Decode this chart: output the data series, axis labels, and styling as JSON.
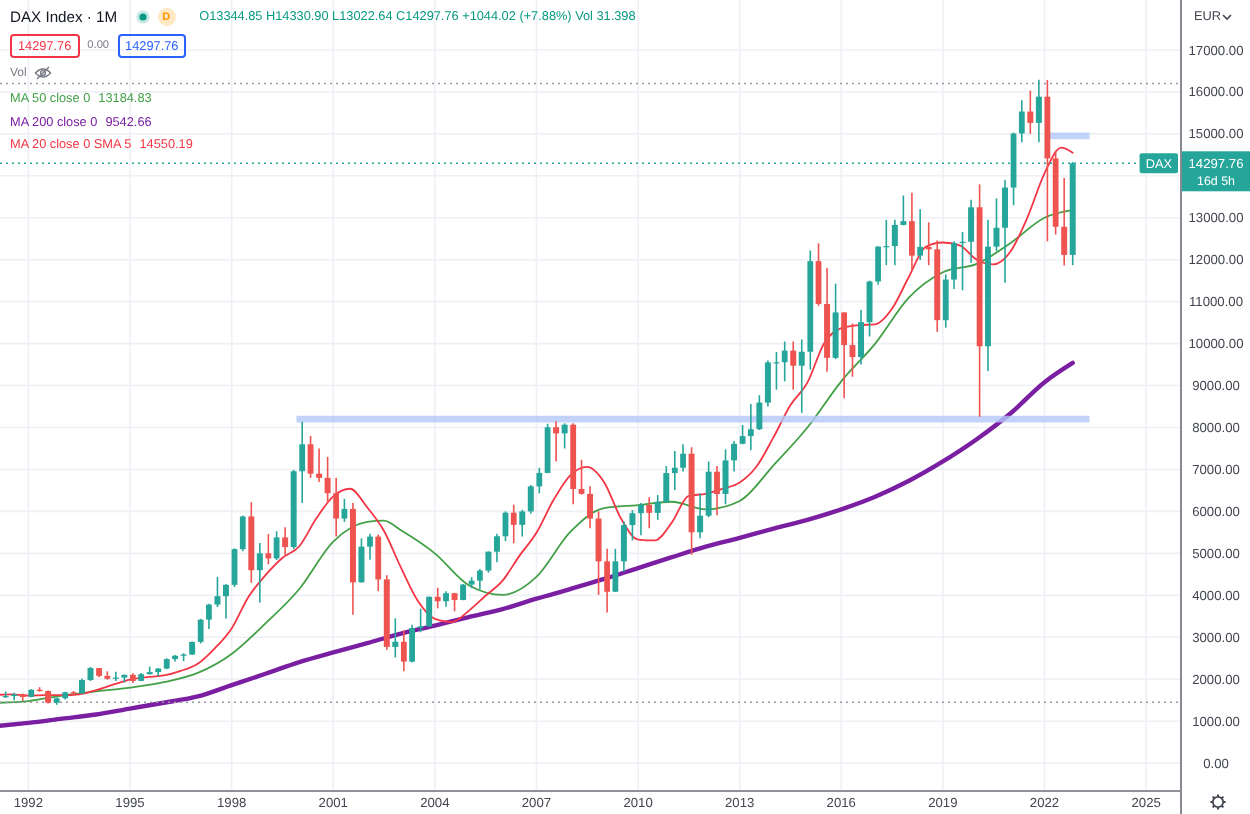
{
  "chart_data": {
    "type": "candlestick",
    "title": "DAX Index · 1M",
    "subtitle": "O13344.85 H14330.90 L13022.64 C14297.76 +1044.02 (+7.88%) Vol 31.398",
    "ylabel": "EUR",
    "annotations": [
      "D",
      "14297.76",
      "0.00",
      "14297.76",
      "Vol",
      "16d 5h",
      "13184.83",
      "9542.66",
      "14550.19"
    ],
    "x": [
      "1991-05",
      "1991-08",
      "1991-11",
      "1992-02",
      "1992-05",
      "1992-08",
      "1992-11",
      "1993-02",
      "1993-05",
      "1993-08",
      "1993-11",
      "1994-02",
      "1994-05",
      "1994-08",
      "1994-11",
      "1995-02",
      "1995-05",
      "1995-08",
      "1995-11",
      "1996-02",
      "1996-05",
      "1996-08",
      "1996-11",
      "1997-02",
      "1997-05",
      "1997-08",
      "1997-11",
      "1998-02",
      "1998-05",
      "1998-08",
      "1998-11",
      "1999-02",
      "1999-05",
      "1999-08",
      "1999-11",
      "2000-02",
      "2000-05",
      "2000-08",
      "2000-11",
      "2001-02",
      "2001-05",
      "2001-08",
      "2001-11",
      "2002-02",
      "2002-05",
      "2002-08",
      "2002-11",
      "2003-02",
      "2003-05",
      "2003-08",
      "2003-11",
      "2004-02",
      "2004-05",
      "2004-08",
      "2004-11",
      "2005-02",
      "2005-05",
      "2005-08",
      "2005-11",
      "2006-02",
      "2006-05",
      "2006-08",
      "2006-11",
      "2007-02",
      "2007-05",
      "2007-08",
      "2007-11",
      "2008-02",
      "2008-05",
      "2008-08",
      "2008-11",
      "2009-02",
      "2009-05",
      "2009-08",
      "2009-11",
      "2010-02",
      "2010-05",
      "2010-08",
      "2010-11",
      "2011-02",
      "2011-05",
      "2011-08",
      "2011-11",
      "2012-02",
      "2012-05",
      "2012-08",
      "2012-11",
      "2013-02",
      "2013-05",
      "2013-08",
      "2013-11",
      "2014-02",
      "2014-05",
      "2014-08",
      "2014-11",
      "2015-02",
      "2015-05",
      "2015-08",
      "2015-11",
      "2016-02",
      "2016-05",
      "2016-08",
      "2016-11",
      "2017-02",
      "2017-05",
      "2017-08",
      "2017-11",
      "2018-02",
      "2018-05",
      "2018-08",
      "2018-11",
      "2019-02",
      "2019-05",
      "2019-08",
      "2019-11",
      "2020-02",
      "2020-05",
      "2020-08",
      "2020-11",
      "2021-02",
      "2021-05",
      "2021-08",
      "2021-11",
      "2022-02",
      "2022-05",
      "2022-08",
      "2022-11"
    ],
    "ohlc": [
      [
        1580,
        1710,
        1550,
        1600
      ],
      [
        1600,
        1680,
        1500,
        1640
      ],
      [
        1640,
        1660,
        1480,
        1578
      ],
      [
        1578,
        1760,
        1570,
        1750
      ],
      [
        1750,
        1810,
        1700,
        1720
      ],
      [
        1720,
        1730,
        1420,
        1440
      ],
      [
        1440,
        1560,
        1390,
        1545
      ],
      [
        1545,
        1700,
        1520,
        1690
      ],
      [
        1690,
        1720,
        1620,
        1660
      ],
      [
        1660,
        2020,
        1650,
        1980
      ],
      [
        1980,
        2290,
        1960,
        2267
      ],
      [
        2267,
        2270,
        2050,
        2080
      ],
      [
        2080,
        2190,
        1990,
        2010
      ],
      [
        2010,
        2180,
        1960,
        2040
      ],
      [
        2040,
        2110,
        1920,
        2107
      ],
      [
        2107,
        2140,
        1910,
        1960
      ],
      [
        1960,
        2150,
        1950,
        2120
      ],
      [
        2120,
        2300,
        2110,
        2170
      ],
      [
        2170,
        2270,
        2080,
        2254
      ],
      [
        2254,
        2500,
        2240,
        2480
      ],
      [
        2480,
        2580,
        2420,
        2560
      ],
      [
        2560,
        2620,
        2430,
        2590
      ],
      [
        2590,
        2900,
        2580,
        2889
      ],
      [
        2889,
        3440,
        2850,
        3420
      ],
      [
        3420,
        3800,
        3200,
        3780
      ],
      [
        3780,
        4440,
        3720,
        3980
      ],
      [
        3980,
        4270,
        3450,
        4250
      ],
      [
        4250,
        5120,
        4200,
        5100
      ],
      [
        5100,
        5900,
        5050,
        5880
      ],
      [
        5880,
        6220,
        4300,
        4600
      ],
      [
        4600,
        5250,
        3830,
        5002
      ],
      [
        5002,
        5460,
        4740,
        4880
      ],
      [
        4880,
        5530,
        4840,
        5380
      ],
      [
        5380,
        5620,
        4950,
        5150
      ],
      [
        5150,
        6990,
        5100,
        6958
      ],
      [
        6958,
        8136,
        6200,
        7600
      ],
      [
        7600,
        7800,
        6800,
        6900
      ],
      [
        6900,
        7500,
        6700,
        6800
      ],
      [
        6800,
        7300,
        6200,
        6434
      ],
      [
        6434,
        6800,
        5400,
        5830
      ],
      [
        5830,
        6300,
        5750,
        6060
      ],
      [
        6060,
        6200,
        3540,
        4310
      ],
      [
        4310,
        5360,
        4300,
        5160
      ],
      [
        5160,
        5470,
        4850,
        5400
      ],
      [
        5400,
        5450,
        4100,
        4380
      ],
      [
        4380,
        4480,
        2700,
        2770
      ],
      [
        2770,
        3450,
        2520,
        2893
      ],
      [
        2893,
        3160,
        2188,
        2420
      ],
      [
        2420,
        3300,
        2400,
        3220
      ],
      [
        3220,
        3680,
        3120,
        3260
      ],
      [
        3260,
        3970,
        3250,
        3965
      ],
      [
        3965,
        4180,
        3690,
        3860
      ],
      [
        3860,
        4100,
        3730,
        4050
      ],
      [
        4050,
        4060,
        3620,
        3890
      ],
      [
        3890,
        4270,
        3880,
        4256
      ],
      [
        4256,
        4430,
        4170,
        4350
      ],
      [
        4350,
        4630,
        4140,
        4590
      ],
      [
        4590,
        5050,
        4540,
        5040
      ],
      [
        5040,
        5470,
        4790,
        5408
      ],
      [
        5408,
        6000,
        5290,
        5970
      ],
      [
        5970,
        6160,
        5240,
        5680
      ],
      [
        5680,
        6040,
        5400,
        6000
      ],
      [
        6000,
        6630,
        5950,
        6597
      ],
      [
        6597,
        7040,
        6430,
        6917
      ],
      [
        6917,
        8090,
        6910,
        8007
      ],
      [
        8007,
        8152,
        7190,
        7860
      ],
      [
        7860,
        8100,
        7500,
        8067
      ],
      [
        8067,
        8100,
        6170,
        6535
      ],
      [
        6535,
        7230,
        6400,
        6418
      ],
      [
        6418,
        6600,
        5600,
        5830
      ],
      [
        5830,
        6000,
        4010,
        4810
      ],
      [
        4810,
        5110,
        3589,
        4085
      ],
      [
        4085,
        5110,
        4080,
        4810
      ],
      [
        4810,
        5760,
        4560,
        5675
      ],
      [
        5675,
        6030,
        5310,
        5957
      ],
      [
        5957,
        6200,
        5430,
        6154
      ],
      [
        6154,
        6340,
        5600,
        5966
      ],
      [
        5966,
        6390,
        5800,
        6229
      ],
      [
        6229,
        7080,
        6200,
        6914
      ],
      [
        6914,
        7440,
        6510,
        7041
      ],
      [
        7041,
        7600,
        6950,
        7376
      ],
      [
        7376,
        7530,
        4966,
        5502
      ],
      [
        5502,
        6430,
        5360,
        5898
      ],
      [
        5898,
        7190,
        5860,
        6947
      ],
      [
        6947,
        7080,
        5910,
        6416
      ],
      [
        6416,
        7480,
        6170,
        7216
      ],
      [
        7216,
        7680,
        6950,
        7612
      ],
      [
        7612,
        8060,
        7600,
        7795
      ],
      [
        7795,
        8560,
        7460,
        7959
      ],
      [
        7959,
        8770,
        7940,
        8594
      ],
      [
        8594,
        9600,
        8500,
        9552
      ],
      [
        9552,
        9800,
        8900,
        9556
      ],
      [
        9556,
        10050,
        9100,
        9833
      ],
      [
        9833,
        10050,
        8900,
        9474
      ],
      [
        9474,
        10100,
        8350,
        9806
      ],
      [
        9806,
        12220,
        9380,
        11966
      ],
      [
        11966,
        12391,
        10900,
        10945
      ],
      [
        10945,
        11800,
        9330,
        9660
      ],
      [
        9660,
        11430,
        9630,
        10743
      ],
      [
        10743,
        10750,
        8699,
        9965
      ],
      [
        9965,
        10480,
        9210,
        9680
      ],
      [
        9680,
        10800,
        9500,
        10511
      ],
      [
        10511,
        11500,
        10170,
        11481
      ],
      [
        11481,
        12320,
        11400,
        12313
      ],
      [
        12313,
        12950,
        11870,
        12325
      ],
      [
        12325,
        12950,
        11870,
        12829
      ],
      [
        12829,
        13530,
        12820,
        12918
      ],
      [
        12918,
        13597,
        11730,
        12097
      ],
      [
        12097,
        13200,
        11990,
        12306
      ],
      [
        12306,
        12890,
        11870,
        12247
      ],
      [
        12247,
        12460,
        10280,
        10559
      ],
      [
        10559,
        11650,
        10380,
        11526
      ],
      [
        11526,
        12440,
        11300,
        12399
      ],
      [
        12399,
        12660,
        11270,
        12428
      ],
      [
        12428,
        13430,
        11930,
        13249
      ],
      [
        13249,
        13795,
        8256,
        9936
      ],
      [
        9936,
        12950,
        9350,
        12311
      ],
      [
        12311,
        13460,
        12200,
        12761
      ],
      [
        12761,
        13900,
        11450,
        13719
      ],
      [
        13719,
        15030,
        13300,
        15008
      ],
      [
        15008,
        15800,
        14800,
        15531
      ],
      [
        15531,
        16030,
        15000,
        15261
      ],
      [
        15261,
        16290,
        14800,
        15885
      ],
      [
        15885,
        16285,
        12439,
        14415
      ],
      [
        14415,
        14600,
        12600,
        12784
      ],
      [
        12784,
        13950,
        11863,
        12114
      ],
      [
        12114,
        14330.9,
        11870,
        14297.76
      ]
    ],
    "colors": [
      "#26a69a",
      "#26a69a",
      "#ef5350",
      "#26a69a",
      "#ef5350",
      "#ef5350",
      "#26a69a",
      "#26a69a",
      "#ef5350",
      "#26a69a",
      "#26a69a",
      "#ef5350",
      "#ef5350",
      "#26a69a",
      "#26a69a",
      "#ef5350",
      "#26a69a",
      "#26a69a",
      "#26a69a",
      "#26a69a",
      "#26a69a",
      "#26a69a",
      "#26a69a",
      "#26a69a",
      "#26a69a",
      "#26a69a",
      "#26a69a",
      "#26a69a",
      "#26a69a",
      "#ef5350",
      "#26a69a",
      "#ef5350",
      "#26a69a",
      "#ef5350",
      "#26a69a",
      "#26a69a",
      "#ef5350",
      "#ef5350",
      "#ef5350",
      "#ef5350",
      "#26a69a",
      "#ef5350",
      "#26a69a",
      "#26a69a",
      "#ef5350",
      "#ef5350",
      "#26a69a",
      "#ef5350",
      "#26a69a",
      "#26a69a",
      "#26a69a",
      "#ef5350",
      "#26a69a",
      "#ef5350",
      "#26a69a",
      "#26a69a",
      "#26a69a",
      "#26a69a",
      "#26a69a",
      "#26a69a",
      "#ef5350",
      "#26a69a",
      "#26a69a",
      "#26a69a",
      "#26a69a",
      "#ef5350",
      "#26a69a",
      "#ef5350",
      "#ef5350",
      "#ef5350",
      "#ef5350",
      "#ef5350",
      "#26a69a",
      "#26a69a",
      "#26a69a",
      "#26a69a",
      "#ef5350",
      "#26a69a",
      "#26a69a",
      "#26a69a",
      "#26a69a",
      "#ef5350",
      "#26a69a",
      "#26a69a",
      "#ef5350",
      "#26a69a",
      "#26a69a",
      "#26a69a",
      "#26a69a",
      "#26a69a",
      "#26a69a",
      "#26a69a",
      "#26a69a",
      "#ef5350",
      "#26a69a",
      "#26a69a",
      "#ef5350",
      "#ef5350",
      "#26a69a",
      "#ef5350",
      "#ef5350",
      "#26a69a",
      "#26a69a",
      "#26a69a",
      "#26a69a",
      "#26a69a",
      "#26a69a",
      "#ef5350",
      "#26a69a",
      "#ef5350",
      "#ef5350",
      "#26a69a",
      "#26a69a",
      "#26a69a",
      "#26a69a",
      "#ef5350",
      "#26a69a",
      "#26a69a",
      "#26a69a",
      "#26a69a",
      "#26a69a",
      "#ef5350",
      "#26a69a",
      "#ef5350",
      "#ef5350",
      "#ef5350",
      "#26a69a"
    ],
    "series": [
      {
        "name": "MA 50 close 0",
        "type": "line",
        "color": "#43a047",
        "x": [
          "1991-03",
          "1992-01",
          "1993-01",
          "1994-01",
          "1995-01",
          "1996-01",
          "1997-01",
          "1998-01",
          "1999-01",
          "2000-01",
          "2001-01",
          "2002-01",
          "2002-07",
          "2003-01",
          "2004-01",
          "2005-01",
          "2006-01",
          "2007-01",
          "2008-01",
          "2009-01",
          "2010-01",
          "2011-01",
          "2012-01",
          "2013-01",
          "2014-01",
          "2015-01",
          "2016-01",
          "2017-01",
          "2018-01",
          "2019-01",
          "2020-01",
          "2021-01",
          "2022-01",
          "2022-11"
        ],
        "values": [
          1440,
          1480,
          1610,
          1710,
          1800,
          1930,
          2150,
          2600,
          3330,
          4150,
          5280,
          5750,
          5780,
          5550,
          5000,
          4240,
          4010,
          4440,
          5510,
          6080,
          6150,
          6230,
          6050,
          6250,
          7100,
          8000,
          9100,
          10000,
          11100,
          11700,
          11900,
          12400,
          13000,
          13180
        ]
      },
      {
        "name": "MA 200 close 0",
        "type": "line",
        "color": "#7b1fa2",
        "x": [
          "1991-03",
          "1992-01",
          "1993-01",
          "1994-01",
          "1995-01",
          "1996-01",
          "1997-01",
          "1998-01",
          "1999-01",
          "2000-01",
          "2001-01",
          "2002-01",
          "2003-01",
          "2004-01",
          "2005-01",
          "2006-01",
          "2007-01",
          "2008-01",
          "2009-01",
          "2010-01",
          "2011-01",
          "2012-01",
          "2013-01",
          "2014-01",
          "2015-01",
          "2016-01",
          "2017-01",
          "2018-01",
          "2019-01",
          "2020-01",
          "2021-01",
          "2022-01",
          "2022-11"
        ],
        "values": [
          890,
          960,
          1060,
          1160,
          1300,
          1440,
          1590,
          1860,
          2130,
          2410,
          2640,
          2860,
          3090,
          3280,
          3480,
          3670,
          3920,
          4150,
          4390,
          4650,
          4910,
          5160,
          5370,
          5590,
          5800,
          6050,
          6350,
          6730,
          7190,
          7720,
          8340,
          9080,
          9540
        ]
      },
      {
        "name": "MA 20 close 0 SMA 5",
        "type": "line",
        "color": "#f23645",
        "x": [
          "1991-03",
          "1991-07",
          "1992-01",
          "1992-07",
          "1993-01",
          "1993-07",
          "1994-01",
          "1994-07",
          "1995-01",
          "1995-07",
          "1996-01",
          "1996-07",
          "1997-01",
          "1997-07",
          "1998-01",
          "1998-07",
          "1999-01",
          "1999-07",
          "2000-01",
          "2000-07",
          "2001-01",
          "2001-07",
          "2002-01",
          "2002-07",
          "2003-01",
          "2003-07",
          "2004-01",
          "2004-07",
          "2005-01",
          "2005-07",
          "2006-01",
          "2006-07",
          "2007-01",
          "2007-07",
          "2008-01",
          "2008-07",
          "2009-01",
          "2009-07",
          "2010-01",
          "2010-07",
          "2011-01",
          "2011-07",
          "2012-01",
          "2012-07",
          "2013-01",
          "2013-07",
          "2014-01",
          "2014-07",
          "2015-01",
          "2015-07",
          "2016-01",
          "2016-07",
          "2017-01",
          "2017-07",
          "2018-01",
          "2018-07",
          "2019-01",
          "2019-07",
          "2020-01",
          "2020-07",
          "2021-01",
          "2021-07",
          "2022-01",
          "2022-07",
          "2022-11"
        ],
        "values": [
          1630,
          1640,
          1610,
          1620,
          1620,
          1640,
          1740,
          1870,
          1990,
          2050,
          2090,
          2200,
          2370,
          2730,
          3210,
          3960,
          4480,
          4890,
          5170,
          5830,
          6360,
          6540,
          6100,
          5540,
          4660,
          3870,
          3440,
          3360,
          3630,
          3990,
          4350,
          4940,
          5490,
          6260,
          6860,
          7060,
          6690,
          5830,
          5330,
          5310,
          5740,
          6370,
          6420,
          6540,
          6690,
          7070,
          7770,
          8530,
          9070,
          10010,
          10370,
          10440,
          10460,
          10830,
          11600,
          12310,
          12410,
          12340,
          12000,
          11890,
          12200,
          13010,
          14060,
          14670,
          14550
        ]
      },
      {
        "type": "line",
        "color": "#b3c7f7",
        "x": [
          "1999-12",
          "2023-05"
        ],
        "values": [
          8200,
          8200
        ]
      },
      {
        "type": "line",
        "color": "#b3c7f7",
        "x": [
          "2022-02",
          "2023-05"
        ],
        "values": [
          14950,
          14950
        ]
      }
    ],
    "xlim": [
      "1991-03",
      "2026-01"
    ],
    "xticks": [
      "1992",
      "1995",
      "1998",
      "2001",
      "2004",
      "2007",
      "2010",
      "2013",
      "2016",
      "2019",
      "2022",
      "2025"
    ],
    "ylim": [
      -640,
      18190
    ],
    "yticks": [
      {
        "value": 0,
        "label": "0.00"
      },
      {
        "value": 1000,
        "label": "1000.00"
      },
      {
        "value": 2000,
        "label": "2000.00"
      },
      {
        "value": 3000,
        "label": "3000.00"
      },
      {
        "value": 4000,
        "label": "4000.00"
      },
      {
        "value": 5000,
        "label": "5000.00"
      },
      {
        "value": 6000,
        "label": "6000.00"
      },
      {
        "value": 7000,
        "label": "7000.00"
      },
      {
        "value": 8000,
        "label": "8000.00"
      },
      {
        "value": 9000,
        "label": "9000.00"
      },
      {
        "value": 10000,
        "label": "10000.00"
      },
      {
        "value": 11000,
        "label": "11000.00"
      },
      {
        "value": 12000,
        "label": "12000.00"
      },
      {
        "value": 13000,
        "label": "13000.00"
      },
      {
        "value": 14000,
        "label": null
      },
      {
        "value": 15000,
        "label": "15000.00"
      },
      {
        "value": 16000,
        "label": "16000.00"
      },
      {
        "value": 17000,
        "label": "17000.00"
      }
    ],
    "grid": true,
    "legend": "top left",
    "ref_lines": [
      {
        "axis": "y",
        "value": 16200,
        "color": "#9598a1",
        "line_style": "dotted"
      },
      {
        "axis": "y",
        "value": 1450,
        "color": "#9598a1",
        "line_style": "dotted"
      },
      {
        "axis": "y",
        "value": 14297.76,
        "label": "DAX",
        "color": "#26a69a",
        "line_style": "dotted"
      }
    ]
  }
}
